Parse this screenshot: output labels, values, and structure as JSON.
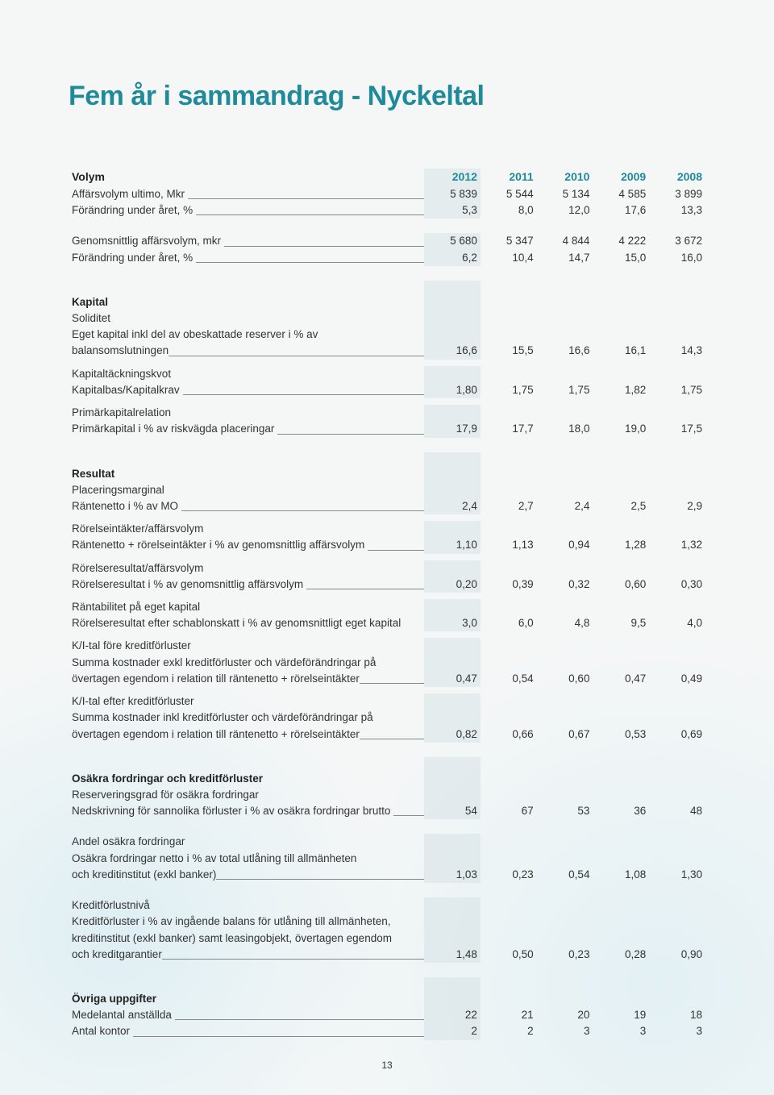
{
  "title": "Fem år i sammandrag - Nyckeltal",
  "page_number": "13",
  "years": [
    "2012",
    "2011",
    "2010",
    "2009",
    "2008"
  ],
  "colors": {
    "accent": "#1f8a9a",
    "highlight_bg": "rgba(200,215,220,0.35)",
    "text": "#333333",
    "underline": "#888888"
  },
  "sections": {
    "volym": {
      "header": "Volym",
      "rows": [
        {
          "label": "Affärsvolym ultimo, Mkr",
          "v": [
            "5 839",
            "5 544",
            "5 134",
            "4 585",
            "3 899"
          ]
        },
        {
          "label": "Förändring under året, %",
          "v": [
            "5,3",
            "8,0",
            "12,0",
            "17,6",
            "13,3"
          ]
        }
      ],
      "rows2": [
        {
          "label": "Genomsnittlig affärsvolym, mkr",
          "v": [
            "5 680",
            "5 347",
            "4 844",
            "4 222",
            "3 672"
          ]
        },
        {
          "label": "Förändring under året, %",
          "v": [
            "6,2",
            "10,4",
            "14,7",
            "15,0",
            "16,0"
          ]
        }
      ]
    },
    "kapital": {
      "header": "Kapital",
      "soliditet_head": "Soliditet",
      "soliditet_desc_1": "Eget kapital inkl del av obeskattade reserver i % av",
      "soliditet_desc_2": "balansomslutningen",
      "soliditet_v": [
        "16,6",
        "15,5",
        "16,6",
        "16,1",
        "14,3"
      ],
      "kapitaltack_head": "Kapitaltäckningskvot",
      "kapitaltack_desc": "Kapitalbas/Kapitalkrav",
      "kapitaltack_v": [
        "1,80",
        "1,75",
        "1,75",
        "1,82",
        "1,75"
      ],
      "primar_head": "Primärkapitalrelation",
      "primar_desc": "Primärkapital i % av riskvägda placeringar",
      "primar_v": [
        "17,9",
        "17,7",
        "18,0",
        "19,0",
        "17,5"
      ]
    },
    "resultat": {
      "header": "Resultat",
      "plac_head": "Placeringsmarginal",
      "plac_desc": "Räntenetto i % av MO",
      "plac_v": [
        "2,4",
        "2,7",
        "2,4",
        "2,5",
        "2,9"
      ],
      "rorint_head": "Rörelseintäkter/affärsvolym",
      "rorint_desc": "Räntenetto + rörelseintäkter i % av genomsnittlig affärsvolym",
      "rorint_v": [
        "1,10",
        "1,13",
        "0,94",
        "1,28",
        "1,32"
      ],
      "rorres_head": "Rörelseresultat/affärsvolym",
      "rorres_desc": "Rörelseresultat i % av genomsnittlig affärsvolym",
      "rorres_v": [
        "0,20",
        "0,39",
        "0,32",
        "0,60",
        "0,30"
      ],
      "rant_head": "Räntabilitet på eget kapital",
      "rant_desc": "Rörelseresultat efter schablonskatt i % av genomsnittligt eget kapital",
      "rant_v": [
        "3,0",
        "6,0",
        "4,8",
        "9,5",
        "4,0"
      ],
      "ki_fore_head": "K/I-tal före kreditförluster",
      "ki_fore_desc1": "Summa kostnader exkl kreditförluster och värdeförändringar på",
      "ki_fore_desc2": "övertagen  egendom i relation till räntenetto + rörelseintäkter",
      "ki_fore_v": [
        "0,47",
        "0,54",
        "0,60",
        "0,47",
        "0,49"
      ],
      "ki_eft_head": "K/I-tal efter kreditförluster",
      "ki_eft_desc1": "Summa kostnader inkl kreditförluster och värdeförändringar på",
      "ki_eft_desc2": "övertagen egendom i relation till räntenetto + rörelseintäkter",
      "ki_eft_v": [
        "0,82",
        "0,66",
        "0,67",
        "0,53",
        "0,69"
      ]
    },
    "osakra": {
      "header": "Osäkra fordringar och kreditförluster",
      "reserv_head": "Reserveringsgrad för osäkra fordringar",
      "reserv_desc": "Nedskrivning för sannolika förluster i % av osäkra fordringar brutto",
      "reserv_v": [
        "54",
        "67",
        "53",
        "36",
        "48"
      ],
      "andel_head": "Andel osäkra fordringar",
      "andel_desc1": "Osäkra fordringar netto i % av total utlåning till allmänheten",
      "andel_desc2": "och kreditinstitut (exkl banker)",
      "andel_v": [
        "1,03",
        "0,23",
        "0,54",
        "1,08",
        "1,30"
      ],
      "kredit_head": "Kreditförlustnivå",
      "kredit_desc1": "Kreditförluster i % av ingående balans för utlåning till allmänheten,",
      "kredit_desc2": "kreditinstitut (exkl banker) samt leasingobjekt, övertagen egendom",
      "kredit_desc3": "och kreditgarantier",
      "kredit_v": [
        "1,48",
        "0,50",
        "0,23",
        "0,28",
        "0,90"
      ]
    },
    "ovriga": {
      "header": "Övriga uppgifter",
      "rows": [
        {
          "label": "Medelantal anställda",
          "v": [
            "22",
            "21",
            "20",
            "19",
            "18"
          ]
        },
        {
          "label": "Antal kontor",
          "v": [
            "2",
            "2",
            "3",
            "3",
            "3"
          ]
        }
      ]
    }
  }
}
